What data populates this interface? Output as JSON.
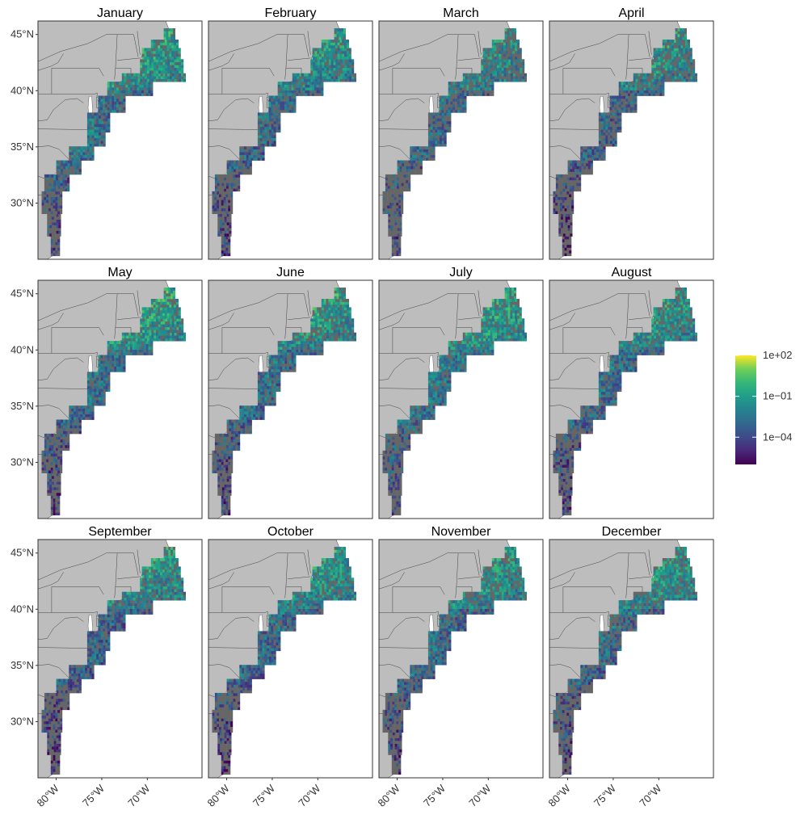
{
  "panels": [
    {
      "month": "January"
    },
    {
      "month": "February"
    },
    {
      "month": "March"
    },
    {
      "month": "April"
    },
    {
      "month": "May"
    },
    {
      "month": "June"
    },
    {
      "month": "July"
    },
    {
      "month": "August"
    },
    {
      "month": "September"
    },
    {
      "month": "October"
    },
    {
      "month": "November"
    },
    {
      "month": "December"
    }
  ],
  "axes": {
    "lat_ticks": [
      {
        "value": 45,
        "label": "45°N"
      },
      {
        "value": 40,
        "label": "40°N"
      },
      {
        "value": 35,
        "label": "35°N"
      },
      {
        "value": 30,
        "label": "30°N"
      }
    ],
    "lon_ticks": [
      {
        "value": -80,
        "label": "80°W"
      },
      {
        "value": -75,
        "label": "75°W"
      },
      {
        "value": -70,
        "label": "70°W"
      }
    ],
    "lon_range": [
      -82,
      -64
    ],
    "lat_range": [
      25,
      46.2
    ]
  },
  "legend": {
    "scale": "log10",
    "palette": "viridis",
    "min_exponent": -6,
    "max_exponent": 2,
    "breaks": [
      {
        "exponent": 2,
        "label": "1e+02"
      },
      {
        "exponent": -1,
        "label": "1e−01"
      },
      {
        "exponent": -4,
        "label": "1e−04"
      }
    ]
  },
  "colors": {
    "land": "#bdbdbd",
    "land_border": "#444444",
    "no_data_ocean": "#666666",
    "panel_border": "#333333",
    "background": "#ffffff"
  },
  "month_profiles": {
    "January": {
      "north": 0.62,
      "mid": 0.4,
      "south": 0.2,
      "fill": 0.8
    },
    "February": {
      "north": 0.58,
      "mid": 0.38,
      "south": 0.15,
      "fill": 0.75
    },
    "March": {
      "north": 0.55,
      "mid": 0.38,
      "south": 0.2,
      "fill": 0.65
    },
    "April": {
      "north": 0.58,
      "mid": 0.35,
      "south": 0.1,
      "fill": 0.65
    },
    "May": {
      "north": 0.65,
      "mid": 0.4,
      "south": 0.12,
      "fill": 0.8
    },
    "June": {
      "north": 0.62,
      "mid": 0.4,
      "south": 0.14,
      "fill": 0.78
    },
    "July": {
      "north": 0.62,
      "mid": 0.45,
      "south": 0.22,
      "fill": 0.78
    },
    "August": {
      "north": 0.58,
      "mid": 0.4,
      "south": 0.15,
      "fill": 0.72
    },
    "September": {
      "north": 0.6,
      "mid": 0.35,
      "south": 0.1,
      "fill": 0.78
    },
    "October": {
      "north": 0.6,
      "mid": 0.38,
      "south": 0.12,
      "fill": 0.8
    },
    "November": {
      "north": 0.58,
      "mid": 0.38,
      "south": 0.18,
      "fill": 0.72
    },
    "December": {
      "north": 0.6,
      "mid": 0.4,
      "south": 0.15,
      "fill": 0.7
    }
  }
}
